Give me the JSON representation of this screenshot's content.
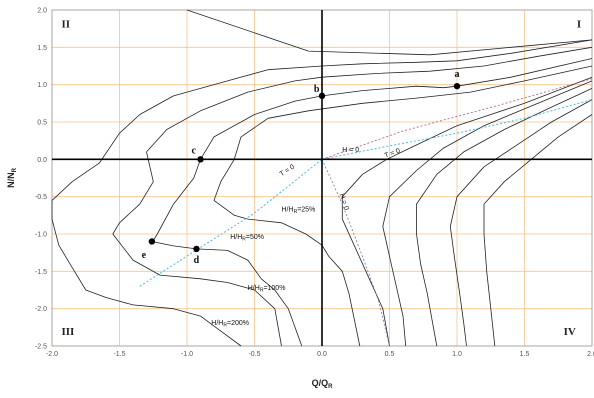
{
  "chart_data": {
    "type": "line",
    "title": "",
    "xlabel": "Q/Q",
    "xlabel_sub": "R",
    "ylabel": "N/N",
    "ylabel_sub": "R",
    "xlim": [
      -2.0,
      2.0
    ],
    "ylim": [
      -2.5,
      2.0
    ],
    "grid": true,
    "x_ticks": [
      {
        "v": -2.0,
        "label": "-2.0"
      },
      {
        "v": -1.5,
        "label": "-1.5"
      },
      {
        "v": -1.0,
        "label": "-1.0"
      },
      {
        "v": -0.5,
        "label": "-0.5"
      },
      {
        "v": 0.0,
        "label": "0.0"
      },
      {
        "v": 0.5,
        "label": "0.5"
      },
      {
        "v": 1.0,
        "label": "1.0"
      },
      {
        "v": 1.5,
        "label": "1.5"
      },
      {
        "v": 2.0,
        "label": "2.0"
      }
    ],
    "y_ticks": [
      {
        "v": 2.0,
        "label": "2.0"
      },
      {
        "v": 1.5,
        "label": "1.5"
      },
      {
        "v": 1.0,
        "label": "1.0"
      },
      {
        "v": 0.5,
        "label": "0.5"
      },
      {
        "v": 0.0,
        "label": "0.0"
      },
      {
        "v": -0.5,
        "label": "-0.5"
      },
      {
        "v": -1.0,
        "label": "-1.0"
      },
      {
        "v": -1.5,
        "label": "-1.5"
      },
      {
        "v": -2.0,
        "label": "-2.0"
      },
      {
        "v": -2.5,
        "label": "-2.5"
      }
    ],
    "quadrants": [
      {
        "label": "I",
        "x": 1.92,
        "y": 1.82
      },
      {
        "label": "II",
        "x": -1.93,
        "y": 1.82
      },
      {
        "label": "III",
        "x": -1.93,
        "y": -2.3
      },
      {
        "label": "IV",
        "x": 1.88,
        "y": -2.3
      }
    ],
    "colors": {
      "grid": "#f5c48e",
      "axes": "#000000",
      "curves": "#222222",
      "frame": "#999999",
      "zero_lines": "#4db6e8",
      "h0_line": "#7a6fa8",
      "h0_line_upper": "#b05070"
    },
    "series": [
      {
        "name": "",
        "style": "solid",
        "points": [
          [
            -1.0,
            2.0
          ],
          [
            -0.1,
            1.45
          ],
          [
            0.8,
            1.4
          ],
          [
            1.4,
            1.5
          ],
          [
            2.0,
            1.6
          ]
        ]
      },
      {
        "name": "",
        "style": "solid",
        "points": [
          [
            -1.26,
            -1.12
          ],
          [
            -1.22,
            -1.0
          ],
          [
            -1.1,
            -0.6
          ],
          [
            -0.95,
            -0.25
          ],
          [
            -0.9,
            0.0
          ],
          [
            -0.8,
            0.3
          ],
          [
            -0.5,
            0.6
          ],
          [
            -0.2,
            0.78
          ],
          [
            0.0,
            0.85
          ],
          [
            0.3,
            0.92
          ],
          [
            0.7,
            0.98
          ],
          [
            0.9,
            0.96
          ],
          [
            1.0,
            0.98
          ],
          [
            1.4,
            1.1
          ],
          [
            2.0,
            1.35
          ]
        ]
      },
      {
        "name": "",
        "style": "solid",
        "points": [
          [
            -1.26,
            -1.1
          ],
          [
            -1.1,
            -1.16
          ],
          [
            -0.93,
            -1.2
          ]
        ]
      },
      {
        "name": "H/H",
        "label_sub": "R",
        "label_suffix": "=50%",
        "style": "solid",
        "points": [
          [
            -0.93,
            -1.2
          ],
          [
            -0.7,
            -1.22
          ],
          [
            -0.55,
            -1.35
          ],
          [
            -0.45,
            -1.6
          ],
          [
            -0.35,
            -1.75
          ],
          [
            -0.25,
            -2.0
          ],
          [
            -0.15,
            -2.5
          ]
        ]
      },
      {
        "name": "",
        "style": "solid",
        "points": [
          [
            -0.6,
            0.3
          ],
          [
            -0.4,
            0.55
          ],
          [
            -0.1,
            0.65
          ],
          [
            0.3,
            0.75
          ],
          [
            0.7,
            0.82
          ],
          [
            1.1,
            0.9
          ],
          [
            1.5,
            1.05
          ],
          [
            2.0,
            1.25
          ]
        ]
      },
      {
        "name": "",
        "style": "solid",
        "points": [
          [
            -0.6,
            0.3
          ],
          [
            -0.65,
            0.0
          ],
          [
            -0.75,
            -0.3
          ],
          [
            -0.8,
            -0.55
          ],
          [
            -0.65,
            -0.75
          ],
          [
            -0.55,
            -0.8
          ]
        ]
      },
      {
        "name": "H/H",
        "label_sub": "R",
        "label_suffix": "=25%",
        "style": "solid",
        "points": [
          [
            -0.55,
            -0.8
          ],
          [
            -0.3,
            -0.85
          ],
          [
            -0.12,
            -1.0
          ],
          [
            0.0,
            -1.15
          ],
          [
            0.05,
            -1.3
          ],
          [
            0.15,
            -1.5
          ],
          [
            0.2,
            -1.8
          ],
          [
            0.28,
            -2.5
          ]
        ]
      },
      {
        "name": "",
        "style": "solid",
        "points": [
          [
            -1.3,
            0.1
          ],
          [
            -1.15,
            0.4
          ],
          [
            -0.9,
            0.65
          ],
          [
            -0.55,
            0.9
          ],
          [
            -0.2,
            1.05
          ],
          [
            0.0,
            1.1
          ],
          [
            0.4,
            1.15
          ],
          [
            0.8,
            1.18
          ],
          [
            1.2,
            1.25
          ],
          [
            1.6,
            1.38
          ],
          [
            2.0,
            1.5
          ]
        ]
      },
      {
        "name": "",
        "style": "solid",
        "points": [
          [
            -1.3,
            0.1
          ],
          [
            -1.25,
            -0.3
          ],
          [
            -1.35,
            -0.6
          ],
          [
            -1.5,
            -0.85
          ],
          [
            -1.55,
            -1.0
          ]
        ]
      },
      {
        "name": "H/H",
        "label_sub": "R",
        "label_suffix": "=100%",
        "style": "solid",
        "points": [
          [
            -1.55,
            -1.0
          ],
          [
            -1.4,
            -1.35
          ],
          [
            -1.2,
            -1.55
          ],
          [
            -0.9,
            -1.6
          ],
          [
            -0.7,
            -1.65
          ],
          [
            -0.5,
            -1.75
          ],
          [
            -0.35,
            -2.0
          ],
          [
            -0.3,
            -2.5
          ]
        ]
      },
      {
        "name": "",
        "style": "solid",
        "points": [
          [
            -2.0,
            -0.55
          ],
          [
            -1.85,
            -0.3
          ],
          [
            -1.65,
            -0.05
          ],
          [
            -1.5,
            0.35
          ],
          [
            -1.35,
            0.6
          ],
          [
            -1.1,
            0.85
          ],
          [
            -0.7,
            1.05
          ],
          [
            -0.4,
            1.2
          ],
          [
            0.0,
            1.25
          ],
          [
            0.3,
            1.28
          ],
          [
            0.7,
            1.3
          ],
          [
            1.0,
            1.32
          ],
          [
            1.4,
            1.42
          ],
          [
            2.0,
            1.6
          ]
        ]
      },
      {
        "name": "",
        "style": "solid",
        "points": [
          [
            -2.0,
            -0.55
          ],
          [
            -2.0,
            -0.8
          ],
          [
            -1.95,
            -1.15
          ],
          [
            -1.85,
            -1.45
          ],
          [
            -1.75,
            -1.75
          ],
          [
            -1.6,
            -1.85
          ],
          [
            -1.4,
            -1.95
          ]
        ]
      },
      {
        "name": "H/H",
        "label_sub": "R",
        "label_suffix": "=200%",
        "style": "solid",
        "points": [
          [
            -1.4,
            -1.95
          ],
          [
            -1.1,
            -2.0
          ],
          [
            -0.9,
            -2.1
          ],
          [
            -0.75,
            -2.3
          ],
          [
            -0.6,
            -2.5
          ]
        ]
      },
      {
        "name": "",
        "style": "solid",
        "points": [
          [
            2.0,
            1.1
          ],
          [
            1.5,
            0.75
          ],
          [
            1.0,
            0.45
          ],
          [
            0.65,
            0.15
          ],
          [
            0.48,
            0.0
          ],
          [
            0.3,
            -0.2
          ],
          [
            0.15,
            -0.5
          ],
          [
            0.15,
            -0.8
          ],
          [
            0.25,
            -1.2
          ],
          [
            0.35,
            -1.6
          ],
          [
            0.45,
            -2.0
          ],
          [
            0.5,
            -2.5
          ]
        ]
      },
      {
        "name": "",
        "style": "solid",
        "points": [
          [
            2.0,
            1.05
          ],
          [
            1.6,
            0.75
          ],
          [
            1.2,
            0.45
          ],
          [
            0.9,
            0.15
          ],
          [
            0.7,
            -0.15
          ],
          [
            0.5,
            -0.5
          ],
          [
            0.45,
            -0.9
          ],
          [
            0.5,
            -1.3
          ],
          [
            0.55,
            -1.7
          ],
          [
            0.6,
            -2.1
          ],
          [
            0.62,
            -2.5
          ]
        ]
      },
      {
        "name": "",
        "style": "solid",
        "points": [
          [
            2.0,
            0.95
          ],
          [
            1.7,
            0.7
          ],
          [
            1.35,
            0.4
          ],
          [
            1.05,
            0.1
          ],
          [
            0.85,
            -0.2
          ],
          [
            0.7,
            -0.6
          ],
          [
            0.7,
            -1.0
          ],
          [
            0.73,
            -1.4
          ],
          [
            0.78,
            -1.8
          ],
          [
            0.82,
            -2.2
          ],
          [
            0.85,
            -2.5
          ]
        ]
      },
      {
        "name": "",
        "style": "solid",
        "points": [
          [
            2.0,
            0.8
          ],
          [
            1.7,
            0.5
          ],
          [
            1.45,
            0.2
          ],
          [
            1.2,
            -0.1
          ],
          [
            1.0,
            -0.5
          ],
          [
            0.95,
            -0.9
          ],
          [
            0.98,
            -1.3
          ],
          [
            1.02,
            -1.8
          ],
          [
            1.05,
            -2.2
          ],
          [
            1.07,
            -2.5
          ]
        ]
      },
      {
        "name": "",
        "style": "solid",
        "points": [
          [
            2.0,
            0.6
          ],
          [
            1.75,
            0.3
          ],
          [
            1.55,
            0.0
          ],
          [
            1.35,
            -0.3
          ],
          [
            1.2,
            -0.6
          ],
          [
            1.2,
            -1.0
          ],
          [
            1.22,
            -1.5
          ],
          [
            1.25,
            -2.0
          ],
          [
            1.28,
            -2.5
          ]
        ]
      },
      {
        "name": "T = 0",
        "style": "dashed-blue",
        "points": [
          [
            -1.35,
            -1.7
          ],
          [
            -0.9,
            -1.18
          ],
          [
            -0.5,
            -0.72
          ],
          [
            0.0,
            0.0
          ],
          [
            0.5,
            0.18
          ],
          [
            1.0,
            0.35
          ],
          [
            1.5,
            0.55
          ],
          [
            2.0,
            0.8
          ]
        ]
      },
      {
        "name": "H = 0",
        "style": "dashed-red",
        "points": [
          [
            0.0,
            0.0
          ],
          [
            0.6,
            0.38
          ],
          [
            1.3,
            0.72
          ],
          [
            2.0,
            1.08
          ]
        ]
      },
      {
        "name": "H = 0",
        "style": "dashed-purple",
        "points": [
          [
            0.0,
            0.0
          ],
          [
            0.15,
            -0.6
          ],
          [
            0.3,
            -1.3
          ],
          [
            0.42,
            -1.9
          ],
          [
            0.5,
            -2.5
          ]
        ]
      }
    ],
    "points": [
      {
        "label": "a",
        "x": 1.0,
        "y": 0.98,
        "lx": 1.0,
        "ly": 1.1
      },
      {
        "label": "b",
        "x": 0.0,
        "y": 0.85,
        "lx": -0.04,
        "ly": 0.9
      },
      {
        "label": "c",
        "x": -0.9,
        "y": 0.0,
        "lx": -0.95,
        "ly": 0.08
      },
      {
        "label": "d",
        "x": -0.93,
        "y": -1.2,
        "lx": -0.93,
        "ly": -1.39
      },
      {
        "label": "e",
        "x": -1.26,
        "y": -1.1,
        "lx": -1.32,
        "ly": -1.32
      }
    ],
    "annotations": [
      {
        "text": "H = 0",
        "x": 0.15,
        "y": 0.1,
        "rot": 0
      },
      {
        "text": "T = 0",
        "x": 0.47,
        "y": 0.02,
        "rot": -20
      },
      {
        "text": "T = 0",
        "x": -0.3,
        "y": -0.23,
        "rot": -33
      },
      {
        "text": "H = 0",
        "x": 0.13,
        "y": -0.47,
        "rot": 72
      },
      {
        "text": "H/H",
        "sub": "R",
        "suffix": "=25%",
        "x": -0.3,
        "y": -0.7,
        "rot": 0
      },
      {
        "text": "H/H",
        "sub": "R",
        "suffix": "=50%",
        "x": -0.68,
        "y": -1.07,
        "rot": 0
      },
      {
        "text": "H/H",
        "sub": "R",
        "suffix": "=100%",
        "x": -0.55,
        "y": -1.75,
        "rot": 0
      },
      {
        "text": "H/H",
        "sub": "R",
        "suffix": "=200%",
        "x": -0.82,
        "y": -2.22,
        "rot": 0
      }
    ]
  }
}
